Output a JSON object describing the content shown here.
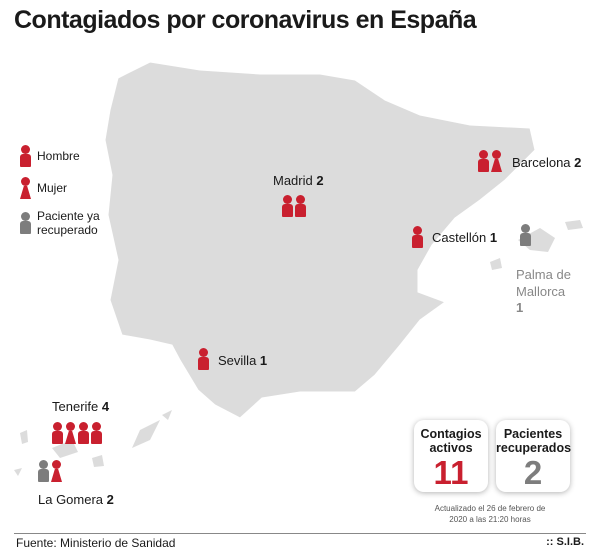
{
  "title": "Contagiados por coronavirus en España",
  "legend": [
    {
      "type": "hombre",
      "label": "Hombre"
    },
    {
      "type": "mujer",
      "label": "Mujer"
    },
    {
      "type": "recuperado",
      "label": "Paciente ya recuperado"
    }
  ],
  "colors": {
    "active": "#c9202f",
    "recovered": "#7d7d7d",
    "land": "#dcdcdc"
  },
  "locations": [
    {
      "name": "Madrid",
      "count": "2",
      "icons": [
        "hombre",
        "hombre"
      ]
    },
    {
      "name": "Barcelona",
      "count": "2",
      "icons": [
        "hombre",
        "mujer"
      ]
    },
    {
      "name": "Castellón",
      "count": "1",
      "icons": [
        "hombre"
      ]
    },
    {
      "name": "Palma de Mallorca",
      "count": "1",
      "icons": [
        "recuperado"
      ]
    },
    {
      "name": "Sevilla",
      "count": "1",
      "icons": [
        "hombre"
      ]
    },
    {
      "name": "Tenerife",
      "count": "4",
      "icons": [
        "hombre",
        "mujer",
        "hombre",
        "hombre"
      ]
    },
    {
      "name": "La Gomera",
      "count": "2",
      "icons": [
        "recuperado",
        "mujer"
      ]
    }
  ],
  "stats": {
    "active_label": "Contagios activos",
    "active": "11",
    "recovered_label": "Pacientes recuperados",
    "recovered": "2"
  },
  "updated": "Actualizado el 26 de febrero de 2020 a las 21:20 horas",
  "source": "Fuente: Ministerio de Sanidad",
  "credit": ":: S.I.B."
}
